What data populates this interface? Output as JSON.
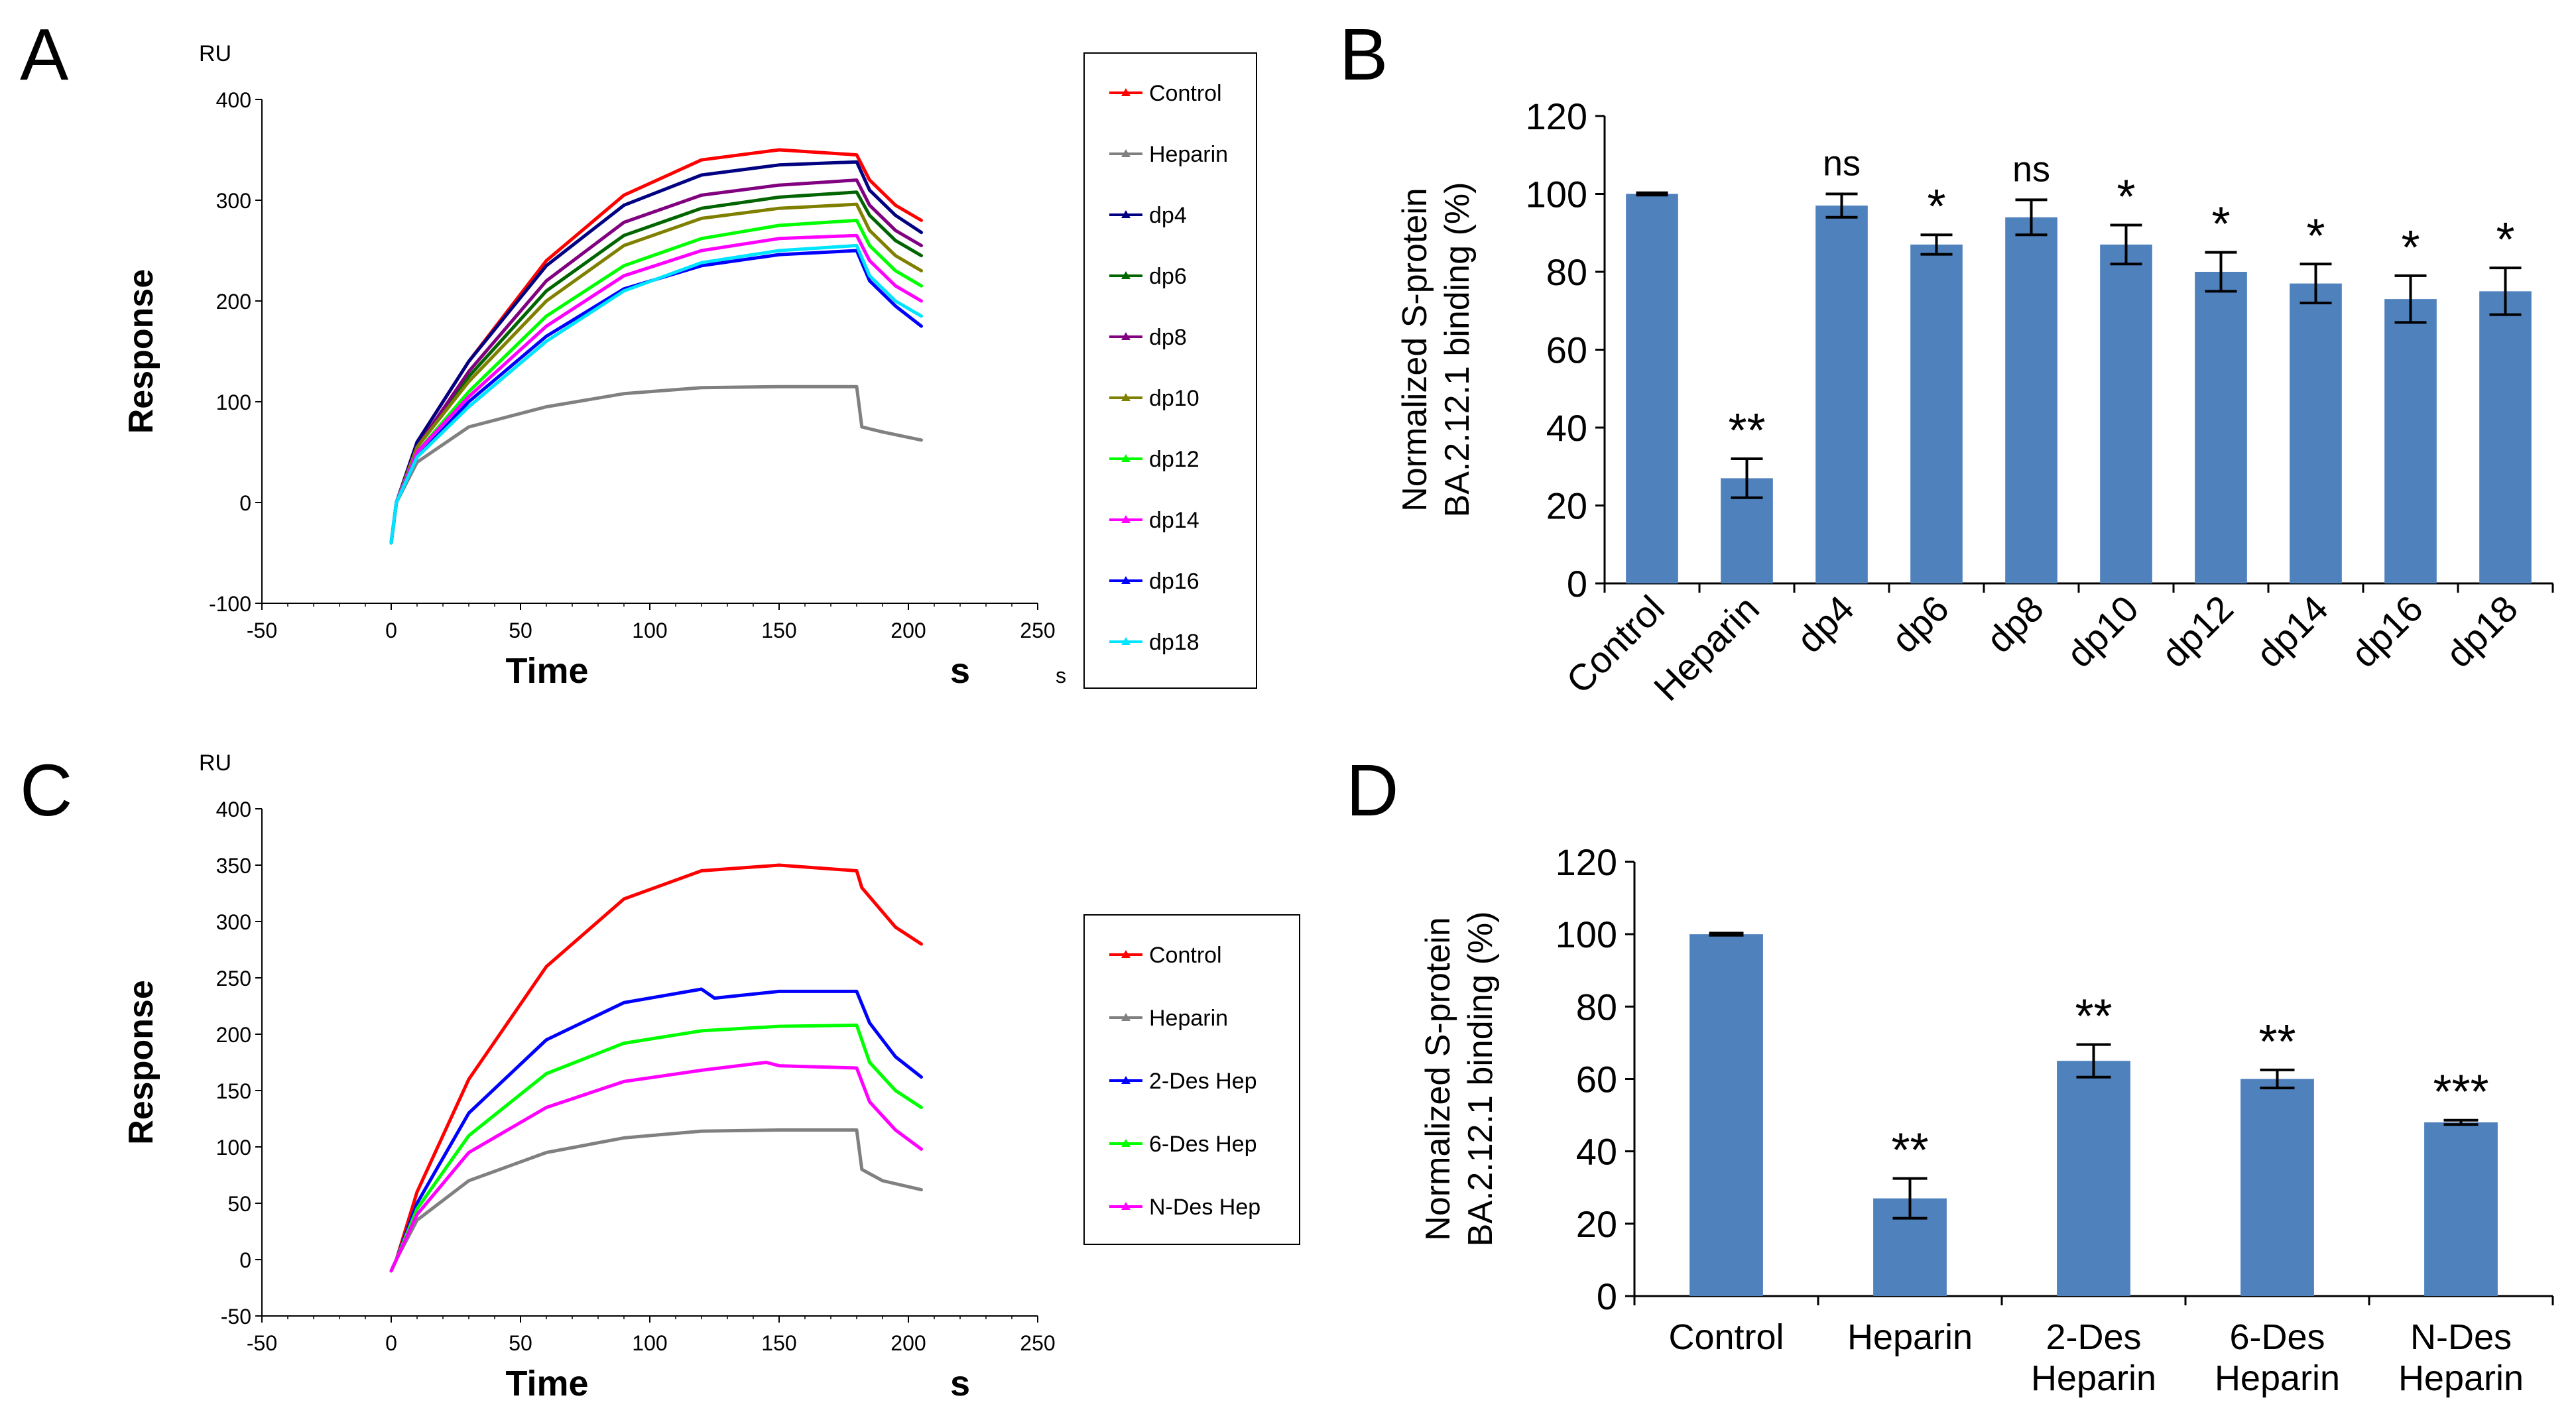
{
  "panels": {
    "A": "A",
    "B": "B",
    "C": "C",
    "D": "D"
  },
  "colors": {
    "Control": "#ff0000",
    "Heparin": "#808080",
    "dp4": "#000080",
    "dp6": "#006400",
    "dp8": "#800080",
    "dp10": "#808000",
    "dp12": "#00ff00",
    "dp14": "#ff00ff",
    "dp16": "#0000ff",
    "dp18": "#00e5ff",
    "2-Des Hep": "#0000ff",
    "6-Des Hep": "#00ff00",
    "N-Des Hep": "#ff00ff",
    "bar": "#4f81bd"
  },
  "chart_data": [
    {
      "panel": "A",
      "type": "line",
      "unit_label": "RU",
      "xlabel": "Time",
      "xunit": "s",
      "xunit_small": "s",
      "ylabel": "Response",
      "xlim": [
        -50,
        250
      ],
      "ylim": [
        -100,
        400
      ],
      "xticks": [
        -50,
        0,
        50,
        100,
        150,
        200,
        250
      ],
      "yticks": [
        -100,
        0,
        100,
        200,
        300,
        400
      ],
      "legend_position": "right",
      "legend": [
        "Control",
        "Heparin",
        "dp4",
        "dp6",
        "dp8",
        "dp10",
        "dp12",
        "dp14",
        "dp16",
        "dp18"
      ],
      "series": [
        {
          "name": "Control",
          "values": [
            [
              0,
              -40
            ],
            [
              2,
              0
            ],
            [
              10,
              60
            ],
            [
              30,
              140
            ],
            [
              60,
              240
            ],
            [
              90,
              305
            ],
            [
              120,
              340
            ],
            [
              150,
              350
            ],
            [
              180,
              345
            ],
            [
              185,
              320
            ],
            [
              195,
              295
            ],
            [
              205,
              280
            ]
          ]
        },
        {
          "name": "Heparin",
          "values": [
            [
              0,
              -40
            ],
            [
              2,
              0
            ],
            [
              10,
              40
            ],
            [
              30,
              75
            ],
            [
              60,
              95
            ],
            [
              90,
              108
            ],
            [
              120,
              114
            ],
            [
              150,
              115
            ],
            [
              180,
              115
            ],
            [
              182,
              75
            ],
            [
              190,
              70
            ],
            [
              205,
              62
            ]
          ]
        },
        {
          "name": "dp4",
          "values": [
            [
              0,
              -40
            ],
            [
              2,
              0
            ],
            [
              10,
              60
            ],
            [
              30,
              140
            ],
            [
              60,
              235
            ],
            [
              90,
              295
            ],
            [
              120,
              325
            ],
            [
              150,
              335
            ],
            [
              180,
              338
            ],
            [
              185,
              310
            ],
            [
              195,
              285
            ],
            [
              205,
              268
            ]
          ]
        },
        {
          "name": "dp6",
          "values": [
            [
              0,
              -40
            ],
            [
              2,
              0
            ],
            [
              10,
              55
            ],
            [
              30,
              125
            ],
            [
              60,
              210
            ],
            [
              90,
              265
            ],
            [
              120,
              292
            ],
            [
              150,
              303
            ],
            [
              180,
              308
            ],
            [
              185,
              285
            ],
            [
              195,
              260
            ],
            [
              205,
              245
            ]
          ]
        },
        {
          "name": "dp8",
          "values": [
            [
              0,
              -40
            ],
            [
              2,
              0
            ],
            [
              10,
              55
            ],
            [
              30,
              130
            ],
            [
              60,
              220
            ],
            [
              90,
              278
            ],
            [
              120,
              305
            ],
            [
              150,
              315
            ],
            [
              180,
              320
            ],
            [
              185,
              295
            ],
            [
              195,
              270
            ],
            [
              205,
              255
            ]
          ]
        },
        {
          "name": "dp10",
          "values": [
            [
              0,
              -40
            ],
            [
              2,
              0
            ],
            [
              10,
              55
            ],
            [
              30,
              120
            ],
            [
              60,
              200
            ],
            [
              90,
              255
            ],
            [
              120,
              282
            ],
            [
              150,
              292
            ],
            [
              180,
              296
            ],
            [
              185,
              270
            ],
            [
              195,
              245
            ],
            [
              205,
              230
            ]
          ]
        },
        {
          "name": "dp12",
          "values": [
            [
              0,
              -40
            ],
            [
              2,
              0
            ],
            [
              10,
              50
            ],
            [
              30,
              110
            ],
            [
              60,
              185
            ],
            [
              90,
              235
            ],
            [
              120,
              262
            ],
            [
              150,
              275
            ],
            [
              180,
              280
            ],
            [
              185,
              255
            ],
            [
              195,
              230
            ],
            [
              205,
              215
            ]
          ]
        },
        {
          "name": "dp14",
          "values": [
            [
              0,
              -40
            ],
            [
              2,
              0
            ],
            [
              10,
              50
            ],
            [
              30,
              105
            ],
            [
              60,
              175
            ],
            [
              90,
              225
            ],
            [
              120,
              250
            ],
            [
              150,
              262
            ],
            [
              180,
              265
            ],
            [
              185,
              240
            ],
            [
              195,
              215
            ],
            [
              205,
              200
            ]
          ]
        },
        {
          "name": "dp16",
          "values": [
            [
              0,
              -40
            ],
            [
              2,
              0
            ],
            [
              10,
              45
            ],
            [
              30,
              100
            ],
            [
              60,
              165
            ],
            [
              90,
              212
            ],
            [
              120,
              235
            ],
            [
              150,
              246
            ],
            [
              180,
              250
            ],
            [
              185,
              220
            ],
            [
              195,
              195
            ],
            [
              205,
              175
            ]
          ]
        },
        {
          "name": "dp18",
          "values": [
            [
              0,
              -40
            ],
            [
              2,
              0
            ],
            [
              10,
              45
            ],
            [
              30,
              95
            ],
            [
              60,
              160
            ],
            [
              90,
              210
            ],
            [
              120,
              238
            ],
            [
              150,
              250
            ],
            [
              180,
              255
            ],
            [
              185,
              225
            ],
            [
              195,
              200
            ],
            [
              205,
              185
            ]
          ]
        }
      ]
    },
    {
      "panel": "B",
      "type": "bar",
      "ylabel_line1": "Normalized S-protein",
      "ylabel_line2": "BA.2.12.1  binding (%)",
      "ylim": [
        0,
        120
      ],
      "yticks": [
        0,
        20,
        40,
        60,
        80,
        100,
        120
      ],
      "categories": [
        "Control",
        "Heparin",
        "dp4",
        "dp6",
        "dp8",
        "dp10",
        "dp12",
        "dp14",
        "dp16",
        "dp18"
      ],
      "values": [
        100,
        27,
        97,
        87,
        94,
        87,
        80,
        77,
        73,
        75
      ],
      "errors": [
        0.3,
        5,
        3,
        2.5,
        4.5,
        5,
        5,
        5,
        6,
        6
      ],
      "significance": [
        "",
        "**",
        "ns",
        "*",
        "ns",
        "*",
        "*",
        "*",
        "*",
        "*"
      ]
    },
    {
      "panel": "C",
      "type": "line",
      "unit_label": "RU",
      "xlabel": "Time",
      "xunit": "s",
      "ylabel": "Response",
      "xlim": [
        -50,
        250
      ],
      "ylim": [
        -50,
        400
      ],
      "xticks": [
        -50,
        0,
        50,
        100,
        150,
        200,
        250
      ],
      "yticks": [
        -50,
        0,
        50,
        100,
        150,
        200,
        250,
        300,
        350,
        400
      ],
      "legend_position": "right",
      "legend": [
        "Control",
        "Heparin",
        "2-Des Hep",
        "6-Des Hep",
        "N-Des Hep"
      ],
      "series": [
        {
          "name": "Control",
          "values": [
            [
              0,
              -10
            ],
            [
              2,
              0
            ],
            [
              10,
              60
            ],
            [
              30,
              160
            ],
            [
              60,
              260
            ],
            [
              90,
              320
            ],
            [
              120,
              345
            ],
            [
              150,
              350
            ],
            [
              180,
              345
            ],
            [
              182,
              330
            ],
            [
              195,
              295
            ],
            [
              205,
              280
            ]
          ]
        },
        {
          "name": "Heparin",
          "values": [
            [
              0,
              -10
            ],
            [
              2,
              0
            ],
            [
              10,
              35
            ],
            [
              30,
              70
            ],
            [
              60,
              95
            ],
            [
              90,
              108
            ],
            [
              120,
              114
            ],
            [
              150,
              115
            ],
            [
              180,
              115
            ],
            [
              182,
              80
            ],
            [
              190,
              70
            ],
            [
              205,
              62
            ]
          ]
        },
        {
          "name": "2-Des Hep",
          "values": [
            [
              0,
              -10
            ],
            [
              2,
              0
            ],
            [
              10,
              50
            ],
            [
              30,
              130
            ],
            [
              60,
              195
            ],
            [
              90,
              228
            ],
            [
              120,
              240
            ],
            [
              125,
              232
            ],
            [
              150,
              238
            ],
            [
              180,
              238
            ],
            [
              185,
              210
            ],
            [
              195,
              180
            ],
            [
              205,
              162
            ]
          ]
        },
        {
          "name": "6-Des Hep",
          "values": [
            [
              0,
              -10
            ],
            [
              2,
              0
            ],
            [
              10,
              45
            ],
            [
              30,
              110
            ],
            [
              60,
              165
            ],
            [
              90,
              192
            ],
            [
              120,
              203
            ],
            [
              150,
              207
            ],
            [
              180,
              208
            ],
            [
              185,
              175
            ],
            [
              195,
              150
            ],
            [
              205,
              135
            ]
          ]
        },
        {
          "name": "N-Des Hep",
          "values": [
            [
              0,
              -10
            ],
            [
              2,
              0
            ],
            [
              10,
              40
            ],
            [
              30,
              95
            ],
            [
              60,
              135
            ],
            [
              90,
              158
            ],
            [
              120,
              168
            ],
            [
              145,
              175
            ],
            [
              150,
              172
            ],
            [
              180,
              170
            ],
            [
              185,
              140
            ],
            [
              195,
              115
            ],
            [
              205,
              98
            ]
          ]
        }
      ]
    },
    {
      "panel": "D",
      "type": "bar",
      "ylabel_line1": "Normalized S-protein",
      "ylabel_line2": "BA.2.12.1  binding (%)",
      "ylim": [
        0,
        120
      ],
      "yticks": [
        0,
        20,
        40,
        60,
        80,
        100,
        120
      ],
      "categories": [
        "Control",
        "Heparin",
        "2-Des\nHeparin",
        "6-Des\nHeparin",
        "N-Des\nHeparin"
      ],
      "values": [
        100,
        27,
        65,
        60,
        48
      ],
      "errors": [
        0.3,
        5.5,
        4.5,
        2.5,
        0.6
      ],
      "significance": [
        "",
        "**",
        "**",
        "**",
        "***"
      ]
    }
  ]
}
